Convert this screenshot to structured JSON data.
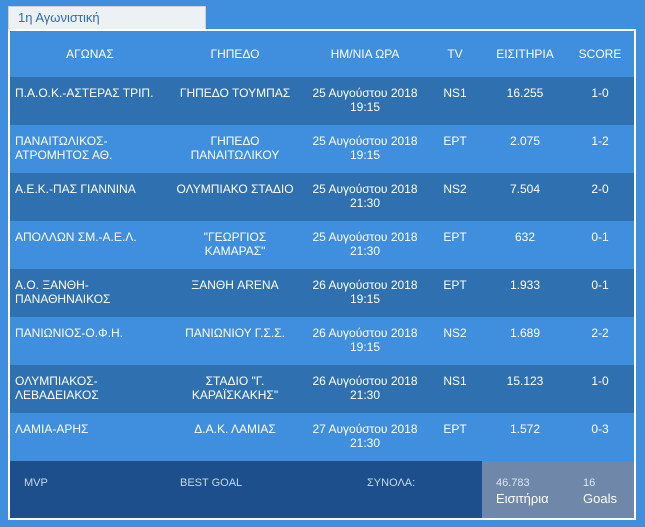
{
  "tab": {
    "label": "1η Αγωνιστική"
  },
  "table": {
    "headers": [
      "ΑΓΩΝΑΣ",
      "ΓΗΠΕΔΟ",
      "ΗΜ/ΝΙΑ ΩΡΑ",
      "TV",
      "ΕΙΣΙΤΗΡΙΑ",
      "SCORE"
    ],
    "rows": [
      {
        "match": [
          "Π.Α.Ο.Κ.-ΑΣΤΕΡΑΣ ΤΡΙΠ."
        ],
        "venue": [
          "ΓΗΠΕΔΟ ΤΟΥΜΠΑΣ"
        ],
        "date": [
          "25 Αυγούστου 2018",
          "19:15"
        ],
        "tv": "NS1",
        "tickets": "16.255",
        "score": "1-0"
      },
      {
        "match": [
          "ΠΑΝΑΙΤΩΛΙΚΟΣ-",
          "ΑΤΡΟΜΗΤΟΣ ΑΘ."
        ],
        "venue": [
          "ΓΗΠΕΔΟ",
          "ΠΑΝΑΙΤΩΛΙΚΟΥ"
        ],
        "date": [
          "25 Αυγούστου 2018",
          "19:15"
        ],
        "tv": "ΕΡΤ",
        "tickets": "2.075",
        "score": "1-2"
      },
      {
        "match": [
          "Α.Ε.Κ.-ΠΑΣ ΓΙΑΝΝΙΝΑ"
        ],
        "venue": [
          "ΟΛΥΜΠΙΑΚΟ ΣΤΑΔΙΟ"
        ],
        "date": [
          "25 Αυγούστου 2018",
          "21:30"
        ],
        "tv": "NS2",
        "tickets": "7.504",
        "score": "2-0"
      },
      {
        "match": [
          "ΑΠΟΛΛΩΝ ΣΜ.-Α.Ε.Λ."
        ],
        "venue": [
          "\"ΓΕΩΡΓΙΟΣ",
          "ΚΑΜΑΡΑΣ\""
        ],
        "date": [
          "25 Αυγούστου 2018",
          "21:30"
        ],
        "tv": "ΕΡΤ",
        "tickets": "632",
        "score": "0-1"
      },
      {
        "match": [
          "Α.Ο. ΞΑΝΘΗ-",
          "ΠΑΝΑΘΗΝΑΙΚΟΣ"
        ],
        "venue": [
          "ΞΑΝΘΗ ARENA"
        ],
        "date": [
          "26 Αυγούστου 2018",
          "19:15"
        ],
        "tv": "ΕΡΤ",
        "tickets": "1.933",
        "score": "0-1"
      },
      {
        "match": [
          "ΠΑΝΙΩΝΙΟΣ-Ο.Φ.Η."
        ],
        "venue": [
          "ΠΑΝΙΩΝΙΟΥ Γ.Σ.Σ."
        ],
        "date": [
          "26 Αυγούστου 2018",
          "19:15"
        ],
        "tv": "NS2",
        "tickets": "1.689",
        "score": "2-2"
      },
      {
        "match": [
          "ΟΛΥΜΠΙΑΚΟΣ-",
          "ΛΕΒΑΔΕΙΑΚΟΣ"
        ],
        "venue": [
          "ΣΤΑΔΙΟ \"Γ.",
          "ΚΑΡΑΪΣΚΑΚΗΣ\""
        ],
        "date": [
          "26 Αυγούστου 2018",
          "21:30"
        ],
        "tv": "NS1",
        "tickets": "15.123",
        "score": "1-0"
      },
      {
        "match": [
          "ΛΑΜΙΑ-ΑΡΗΣ"
        ],
        "venue": [
          "Δ.Α.Κ. ΛΑΜΙΑΣ"
        ],
        "date": [
          "27 Αυγούστου 2018",
          "21:30"
        ],
        "tv": "ΕΡΤ",
        "tickets": "1.572",
        "score": "0-3"
      }
    ]
  },
  "footer": {
    "mvp_label": "MVP",
    "best_goal_label": "BEST GOAL",
    "totals_label": "ΣΥΝΟΛΑ:",
    "tickets_total": "46.783",
    "tickets_label": "Εισιτήρια",
    "goals_total": "16",
    "goals_label": "Goals"
  },
  "colors": {
    "background": "#3f8fde",
    "row_alt": "#2f71b0",
    "footer": "#1c4f8b",
    "totals": "#6f87a8"
  }
}
